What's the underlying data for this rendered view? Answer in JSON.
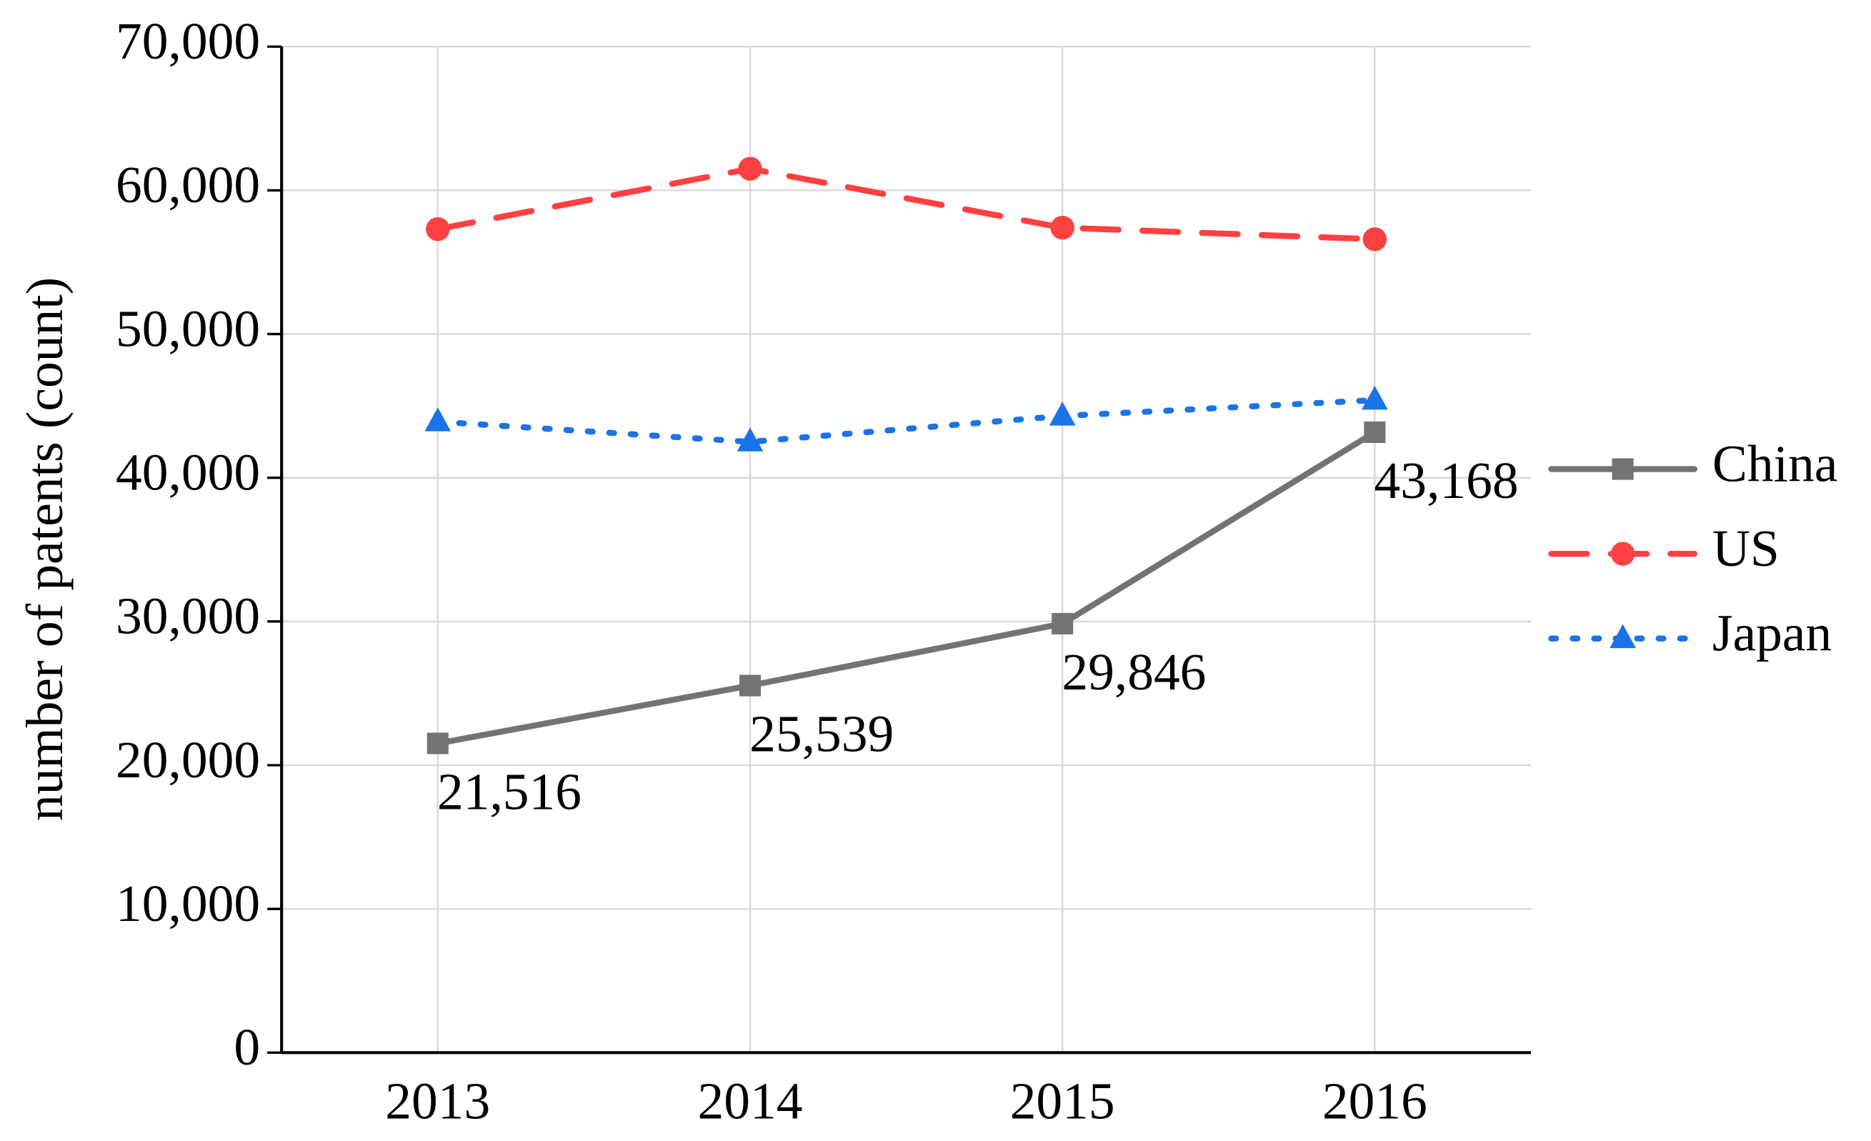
{
  "chart_data": {
    "type": "line",
    "y_label": "number of patents (count)",
    "categories": [
      "2013",
      "2014",
      "2015",
      "2016"
    ],
    "series": [
      {
        "name": "China",
        "color": "#737373",
        "dash": "solid",
        "marker": "square",
        "values": [
          21516,
          25539,
          29846,
          43168
        ],
        "value_labels": [
          "21,516",
          "25,539",
          "29,846",
          "43,168"
        ]
      },
      {
        "name": "US",
        "color": "#ff4040",
        "dash": "dashed",
        "marker": "circle",
        "values": [
          57300,
          61500,
          57400,
          56600
        ]
      },
      {
        "name": "Japan",
        "color": "#1a73e8",
        "dash": "dotted",
        "marker": "triangle",
        "values": [
          43900,
          42500,
          44300,
          45400
        ]
      }
    ],
    "ylim": [
      0,
      70000
    ],
    "yticks": [
      0,
      {
        "value": 10000,
        "label": "10,000"
      },
      {
        "value": 20000,
        "label": "20,000"
      },
      {
        "value": 30000,
        "label": "30,000"
      },
      {
        "value": 40000,
        "label": "40,000"
      },
      {
        "value": 50000,
        "label": "50,000"
      },
      {
        "value": 60000,
        "label": "60,000"
      },
      {
        "value": 70000,
        "label": "70,000"
      }
    ],
    "grid": true,
    "legend": "right"
  }
}
